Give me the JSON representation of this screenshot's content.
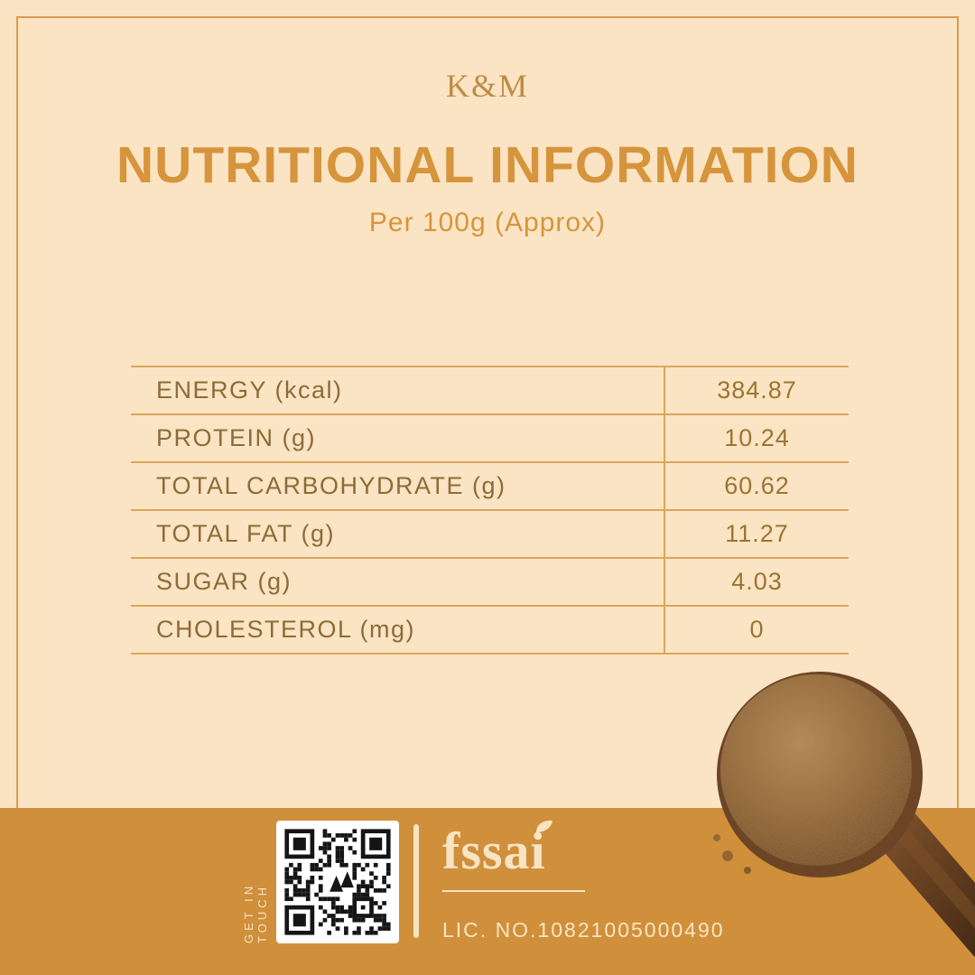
{
  "brand": "K&M",
  "title": "NUTRITIONAL INFORMATION",
  "subtitle": "Per 100g (Approx)",
  "table": {
    "rows": [
      {
        "label": "ENERGY (kcal)",
        "value": "384.87"
      },
      {
        "label": "PROTEIN (g)",
        "value": "10.24"
      },
      {
        "label": "TOTAL CARBOHYDRATE (g)",
        "value": "60.62"
      },
      {
        "label": "TOTAL FAT (g)",
        "value": "11.27"
      },
      {
        "label": "SUGAR (g)",
        "value": "4.03"
      },
      {
        "label": "CHOLESTEROL (mg)",
        "value": "0"
      }
    ]
  },
  "footer": {
    "get_in_touch": "GET IN TOUCH",
    "fssai": "fssai",
    "license": "LIC. NO.10821005000490"
  },
  "colors": {
    "background": "#FBE4C4",
    "accent": "#D6953C",
    "frame_border": "#D89C4F",
    "table_line": "#DCA55C",
    "label_text": "#8C6C36",
    "value_text": "#9C742F",
    "footer_band": "#D08F3B",
    "cream_text": "#F8E4C2"
  }
}
